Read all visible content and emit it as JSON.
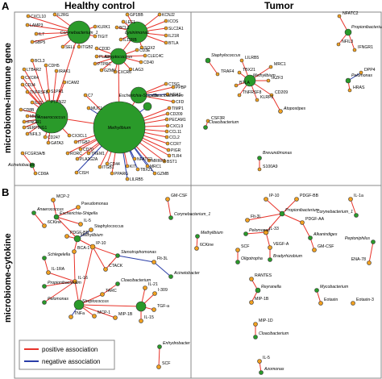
{
  "headers": {
    "left": "Healthy control",
    "right": "Tumor"
  },
  "panels": {
    "a": "A",
    "b": "B"
  },
  "row_labels": {
    "top": "microbiome-immune gene",
    "bottom": "microbiome-cytokine"
  },
  "legend": {
    "positive": "positive association",
    "negative": "negative association"
  },
  "colors": {
    "positive": "#e8332a",
    "negative": "#2a3ea8",
    "microbe": "#2a9a2a",
    "immune": "#f0a020",
    "node_stroke": "#333333",
    "divider": "#888888"
  },
  "network": {
    "a_healthy_microbes": [
      {
        "id": "corynebacterium_1",
        "label": "Corynebacterium_1"
      },
      {
        "id": "lysinimonas",
        "label": "Lysinimonas"
      },
      {
        "id": "streptococcus",
        "label": "Streptococcus"
      },
      {
        "id": "cloacibacterium",
        "label": "Cloacibacterium"
      },
      {
        "id": "escherichia_shigella",
        "label": "Escherichia-Shigella"
      },
      {
        "id": "anaerococcus",
        "label": "Anaerococcus"
      },
      {
        "id": "methylibium",
        "label": "Methylibium"
      },
      {
        "id": "acinetobacter",
        "label": "Acinetobacter"
      }
    ],
    "a_healthy_genes": [
      "CXCL10",
      "IL2RG",
      "LAMP3",
      "IL7",
      "GBP5",
      "SELL",
      "ITGB2",
      "TIGIT",
      "KLRK1",
      "LEF1",
      "GP1BB",
      "KCNJ2",
      "ICOS",
      "BCL2",
      "SLC2A1",
      "IL12RB",
      "IL21R",
      "BTLA",
      "SOX2",
      "CD3D",
      "CD3E",
      "CLEC4C",
      "PLAU",
      "PTPRC",
      "CD40",
      "GZMK",
      "CXCR6",
      "LAG3",
      "BCL3",
      "CDH5",
      "LTB4R2",
      "IRAK1",
      "CXCR4",
      "CD34",
      "TNFRSF8",
      "ICAM2",
      "S1PR1",
      "PPBP",
      "CTSG",
      "HRAS",
      "CFD",
      "TIMP1",
      "CD209",
      "PECAM1",
      "CXCL9",
      "IL32",
      "PTPN22",
      "CCL11",
      "CD8B",
      "CCL2",
      "CCR7",
      "MME",
      "IFNGR1",
      "SERPING1",
      "NFIL3",
      "CD247",
      "GATA3",
      "MUC1",
      "C7",
      "CX3CL1",
      "ITGB7",
      "CD70",
      "RORC",
      "TREM1",
      "PIGR",
      "TLR4",
      "BST1",
      "PLA2G2A",
      "CISH",
      "ITGB1",
      "CD44",
      "PPARG",
      "KIT",
      "TBX21",
      "MRC1",
      "NFATC2",
      "GZMB",
      "LILRB5",
      "FCGR3A/B",
      "CD8A",
      "CCL5",
      "CCL19",
      "ICAM3",
      "MRRF3",
      "LILRBS"
    ],
    "a_tumor": [
      "Staphylococcus",
      "TRAF4",
      "NFATC2",
      "Propionibacterium",
      "NFIL3",
      "IFNGR1",
      "LILRB5",
      "MRC1",
      "TBX21",
      "IKZF3",
      "Methylibium",
      "BTLA",
      "TNFRSF8",
      "KLRF1",
      "CD209",
      "Atopostipes",
      "DPP4",
      "Pelomonas",
      "HRAS",
      "CSF3R",
      "Cloacibacterium",
      "Brevundimonas",
      "S100A9"
    ],
    "b_healthy": [
      "MCP-2",
      "Pseudomonas",
      "Anaerococcus",
      "6CKine",
      "Escherichia-Shigella",
      "IL-5",
      "PDGF-BB",
      "Methylibium",
      "Staphylococcus",
      "BCA-1",
      "IP-10",
      "Schlegelella",
      "IL-1RA",
      "CTACK",
      "Stenotrophomonas",
      "Flt-3L",
      "Propionibacterium",
      "IL-16",
      "Cloacibacterium",
      "TARC",
      "Pelomonas",
      "Streptococcus",
      "IL-21",
      "I-309",
      "TNFa",
      "MCP-1",
      "MIP-1B",
      "TGF-a",
      "IL-15",
      "Acinetobacter",
      "GM-CSF",
      "Corynebacterium_1"
    ],
    "b_tumor": [
      "IP-10",
      "PDGF-BB",
      "IL-1a",
      "Propionibacterium",
      "Corynebacterium_1",
      "Flt-3L",
      "PDGF-AA",
      "Alkanindiges",
      "Methylibium",
      "IL-33",
      "Pelomonas",
      "GM-CSF",
      "6CKine",
      "VEGF-A",
      "SCF",
      "Peptoniphilus",
      "Bradyrhizobium",
      "Oligotropha",
      "ENA-78",
      "RANTES",
      "Reyranella",
      "MIP-1B",
      "Mycobacterium",
      "Eotaxin",
      "Eotaxin-3",
      "MIP-1D",
      "Cloacibacterium",
      "Enhydrobacter",
      "SCF",
      "IL-5",
      "Azomonas"
    ]
  }
}
